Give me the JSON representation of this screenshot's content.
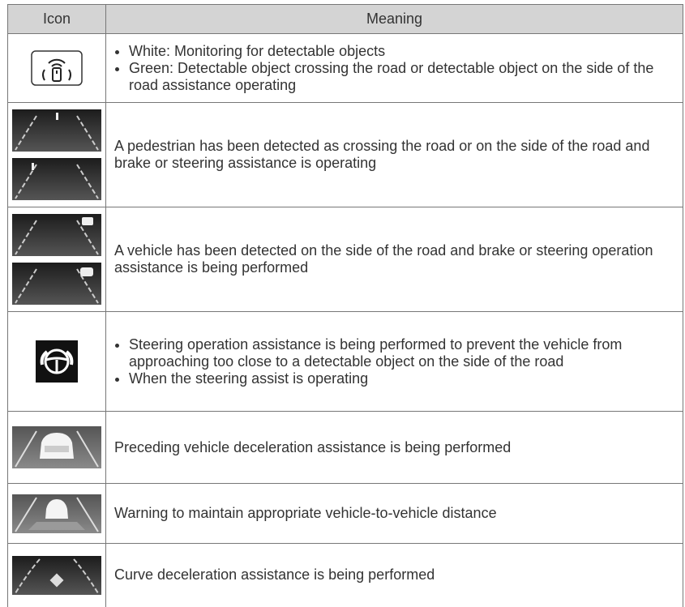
{
  "header": {
    "icon": "Icon",
    "meaning": "Meaning"
  },
  "rows": [
    {
      "meaning": [
        "White: Monitoring for detectable objects",
        "Green: Detectable object crossing the road or detectable object on the side of the road assistance operating"
      ]
    },
    {
      "meaning": "A pedestrian has been detected as crossing the road or on the side of the road and brake or steering assistance is operating"
    },
    {
      "meaning": "A vehicle has been detected on the side of the road and brake or steering operation assistance is being performed"
    },
    {
      "meaning": [
        "Steering operation assistance is being performed to prevent the vehicle from approaching too close to a detectable object on the side of the road",
        "When the steering assist is operating"
      ]
    },
    {
      "meaning": "Preceding vehicle deceleration assistance is being performed"
    },
    {
      "meaning": "Warning to maintain appropriate vehicle-to-vehicle distance"
    },
    {
      "meaning": "Curve deceleration assistance is being performed"
    }
  ]
}
